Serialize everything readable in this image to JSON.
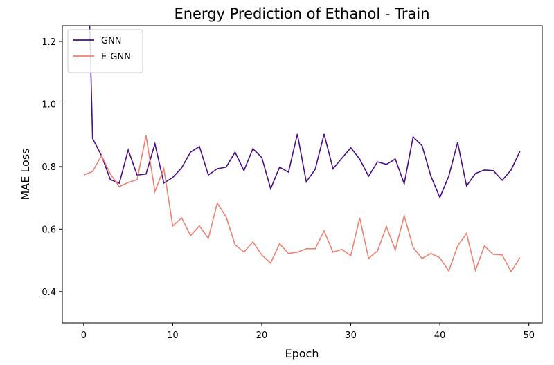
{
  "chart_data": {
    "type": "line",
    "title": "Energy Prediction of Ethanol - Train",
    "x_label": "Epoch",
    "y_label": "MAE Loss",
    "x": [
      0,
      1,
      2,
      3,
      4,
      5,
      6,
      7,
      8,
      9,
      10,
      11,
      12,
      13,
      14,
      15,
      16,
      17,
      18,
      19,
      20,
      21,
      22,
      23,
      24,
      25,
      26,
      27,
      28,
      29,
      30,
      31,
      32,
      33,
      34,
      35,
      36,
      37,
      38,
      39,
      40,
      41,
      42,
      43,
      44,
      45,
      46,
      47,
      48,
      49
    ],
    "series": [
      {
        "name": "GNN",
        "color": "#4b0c8a",
        "values": [
          2.0,
          0.89,
          0.835,
          0.758,
          0.747,
          0.853,
          0.773,
          0.776,
          0.873,
          0.747,
          0.765,
          0.796,
          0.846,
          0.864,
          0.773,
          0.793,
          0.798,
          0.846,
          0.787,
          0.857,
          0.829,
          0.729,
          0.798,
          0.782,
          0.904,
          0.751,
          0.791,
          0.904,
          0.793,
          0.827,
          0.86,
          0.824,
          0.769,
          0.815,
          0.807,
          0.824,
          0.745,
          0.895,
          0.867,
          0.769,
          0.701,
          0.769,
          0.877,
          0.738,
          0.778,
          0.789,
          0.787,
          0.756,
          0.789,
          0.849
        ]
      },
      {
        "name": "E-GNN",
        "color": "#f08070",
        "values": [
          0.773,
          0.784,
          0.835,
          0.776,
          0.736,
          0.749,
          0.758,
          0.899,
          0.72,
          0.793,
          0.61,
          0.636,
          0.579,
          0.61,
          0.57,
          0.683,
          0.639,
          0.55,
          0.526,
          0.559,
          0.517,
          0.491,
          0.553,
          0.522,
          0.526,
          0.537,
          0.537,
          0.594,
          0.526,
          0.535,
          0.515,
          0.636,
          0.506,
          0.53,
          0.608,
          0.533,
          0.643,
          0.541,
          0.506,
          0.522,
          0.508,
          0.466,
          0.546,
          0.586,
          0.468,
          0.546,
          0.519,
          0.517,
          0.464,
          0.508
        ]
      }
    ],
    "xlim": [
      -2.4,
      51.5
    ],
    "ylim": [
      0.3,
      1.251
    ],
    "xticks": [
      0,
      10,
      20,
      30,
      40,
      50
    ],
    "yticks": [
      0.4,
      0.6,
      0.8,
      {
        "value": 1,
        "label": "1.0"
      },
      1.2
    ],
    "grid": false,
    "legend": "upper left"
  }
}
